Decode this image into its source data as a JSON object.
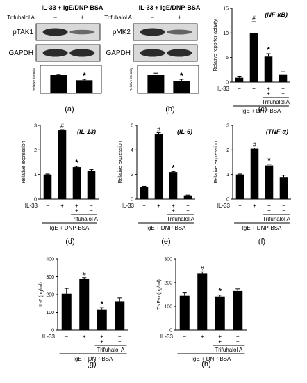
{
  "colors": {
    "bar": "#000000",
    "blot_band": "#2b2b2b",
    "blot_bg": "#d9d9d9"
  },
  "blots": [
    {
      "panel": "(a)",
      "header": "IL-33 + IgE/DNP-BSA",
      "row_label": "Trifuhalol A",
      "lanes": [
        "−",
        "+"
      ],
      "bands": [
        {
          "label": "pTAK1",
          "intensity": [
            1.0,
            0.45
          ]
        },
        {
          "label": "GAPDH",
          "intensity": [
            1.0,
            1.0
          ]
        }
      ],
      "quant": {
        "ylabel": "Relative intensity",
        "values": [
          1.0,
          0.7
        ],
        "errors": [
          0.02,
          0.05
        ],
        "marks": [
          "",
          "*"
        ],
        "ylim": [
          0,
          1.5
        ]
      }
    },
    {
      "panel": "(b)",
      "header": "IL-33 + IgE/DNP-BSA",
      "row_label": "Trifuhalol A",
      "lanes": [
        "−",
        "+"
      ],
      "bands": [
        {
          "label": "pMK2",
          "intensity": [
            1.0,
            0.5
          ]
        },
        {
          "label": "GAPDH",
          "intensity": [
            1.0,
            1.0
          ]
        }
      ],
      "quant": {
        "ylabel": "Relative intensity",
        "values": [
          1.0,
          0.65
        ],
        "errors": [
          0.08,
          0.1
        ],
        "marks": [
          "",
          "*"
        ],
        "ylim": [
          0,
          1.5
        ]
      }
    }
  ],
  "chart_data": [
    {
      "panel": "(c)",
      "type": "bar",
      "title": "(NF-κB)",
      "ylabel": "Relative reporter activity",
      "ylim": [
        0,
        15
      ],
      "yticks": [
        0,
        5,
        10,
        15
      ],
      "values": [
        0.9,
        10.0,
        5.2,
        1.6
      ],
      "errors": [
        0.3,
        2.3,
        0.6,
        0.5
      ],
      "marks": [
        "",
        "#",
        "*",
        ""
      ]
    },
    {
      "panel": "(d)",
      "type": "bar",
      "title": "(IL-13)",
      "ylabel": "Relative expression",
      "ylim": [
        0,
        3
      ],
      "yticks": [
        0,
        1,
        2,
        3
      ],
      "values": [
        1.0,
        2.8,
        1.3,
        1.15
      ],
      "errors": [
        0.02,
        0.03,
        0.03,
        0.05
      ],
      "marks": [
        "",
        "#",
        "*",
        ""
      ]
    },
    {
      "panel": "(e)",
      "type": "bar",
      "title": "(IL-6)",
      "ylabel": "Relative expression",
      "ylim": [
        0,
        6
      ],
      "yticks": [
        0,
        2,
        4,
        6
      ],
      "values": [
        1.0,
        5.3,
        2.2,
        0.3
      ],
      "errors": [
        0.05,
        0.1,
        0.05,
        0.03
      ],
      "marks": [
        "",
        "#",
        "*",
        ""
      ]
    },
    {
      "panel": "(f)",
      "type": "bar",
      "title": "(TNF-α)",
      "ylabel": "Relative expression",
      "ylim": [
        0,
        3
      ],
      "yticks": [
        0,
        1,
        2,
        3
      ],
      "values": [
        1.0,
        2.05,
        1.37,
        0.9
      ],
      "errors": [
        0.02,
        0.03,
        0.05,
        0.07
      ],
      "marks": [
        "",
        "#",
        "*",
        ""
      ]
    },
    {
      "panel": "(g)",
      "type": "bar",
      "title": "",
      "ylabel": "IL-6 (pg/ml)",
      "ylim": [
        0,
        400
      ],
      "yticks": [
        0,
        100,
        200,
        300,
        400
      ],
      "values": [
        205,
        290,
        115,
        163
      ],
      "errors": [
        30,
        5,
        10,
        18
      ],
      "marks": [
        "",
        "#",
        "*",
        ""
      ]
    },
    {
      "panel": "(h)",
      "type": "bar",
      "title": "",
      "ylabel": "TNF-α (pg/ml)",
      "ylim": [
        0,
        300
      ],
      "yticks": [
        0,
        100,
        200,
        300
      ],
      "values": [
        145,
        240,
        142,
        165
      ],
      "errors": [
        12,
        6,
        6,
        9
      ],
      "marks": [
        "",
        "#",
        "*",
        ""
      ]
    }
  ],
  "conditions": {
    "il33_label": "IL-33",
    "il33": [
      "−",
      "+",
      "+",
      "−"
    ],
    "trifuhalol": [
      "",
      "",
      "+",
      "−"
    ],
    "trifuhalol_label": "Trifuhalol A",
    "ige_label": "IgE + DNP-BSA"
  }
}
